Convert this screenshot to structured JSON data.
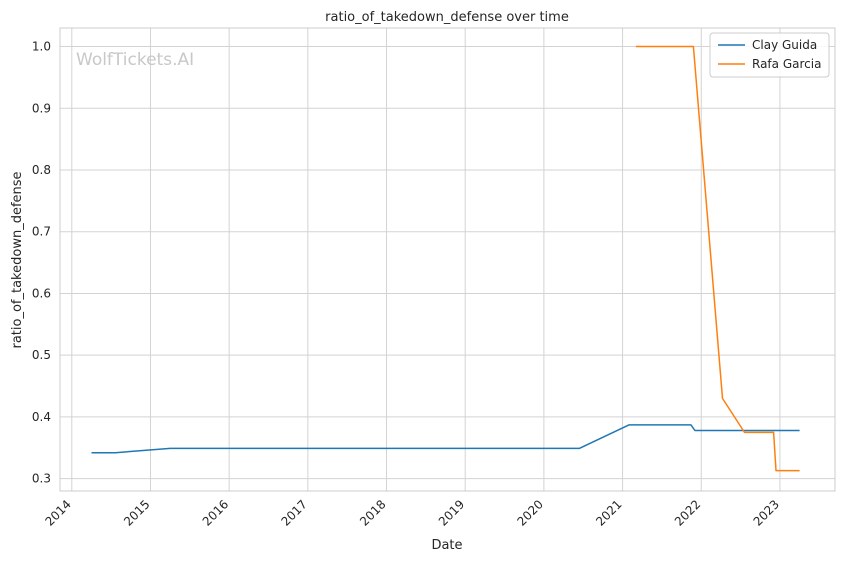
{
  "chart_data": {
    "type": "line",
    "title": "ratio_of_takedown_defense over time",
    "xlabel": "Date",
    "ylabel": "ratio_of_takedown_defense",
    "watermark": "WolfTickets.AI",
    "xlim": [
      2013.85,
      2023.7
    ],
    "ylim": [
      0.28,
      1.03
    ],
    "x_ticks": [
      "2014",
      "2015",
      "2016",
      "2017",
      "2018",
      "2019",
      "2020",
      "2021",
      "2022",
      "2023"
    ],
    "y_ticks": [
      "0.3",
      "0.4",
      "0.5",
      "0.6",
      "0.7",
      "0.8",
      "0.9",
      "1.0"
    ],
    "grid": true,
    "legend_position": "top-right",
    "series": [
      {
        "name": "Clay Guida",
        "color": "#1f77b4",
        "points": [
          [
            2014.25,
            0.342
          ],
          [
            2014.55,
            0.342
          ],
          [
            2015.25,
            0.349
          ],
          [
            2020.45,
            0.349
          ],
          [
            2021.08,
            0.387
          ],
          [
            2021.87,
            0.387
          ],
          [
            2021.92,
            0.378
          ],
          [
            2023.25,
            0.378
          ]
        ]
      },
      {
        "name": "Rafa Garcia",
        "color": "#ff7f0e",
        "points": [
          [
            2021.17,
            1.0
          ],
          [
            2021.9,
            1.0
          ],
          [
            2022.27,
            0.43
          ],
          [
            2022.55,
            0.375
          ],
          [
            2022.92,
            0.375
          ],
          [
            2022.95,
            0.313
          ],
          [
            2023.25,
            0.313
          ]
        ]
      }
    ]
  }
}
